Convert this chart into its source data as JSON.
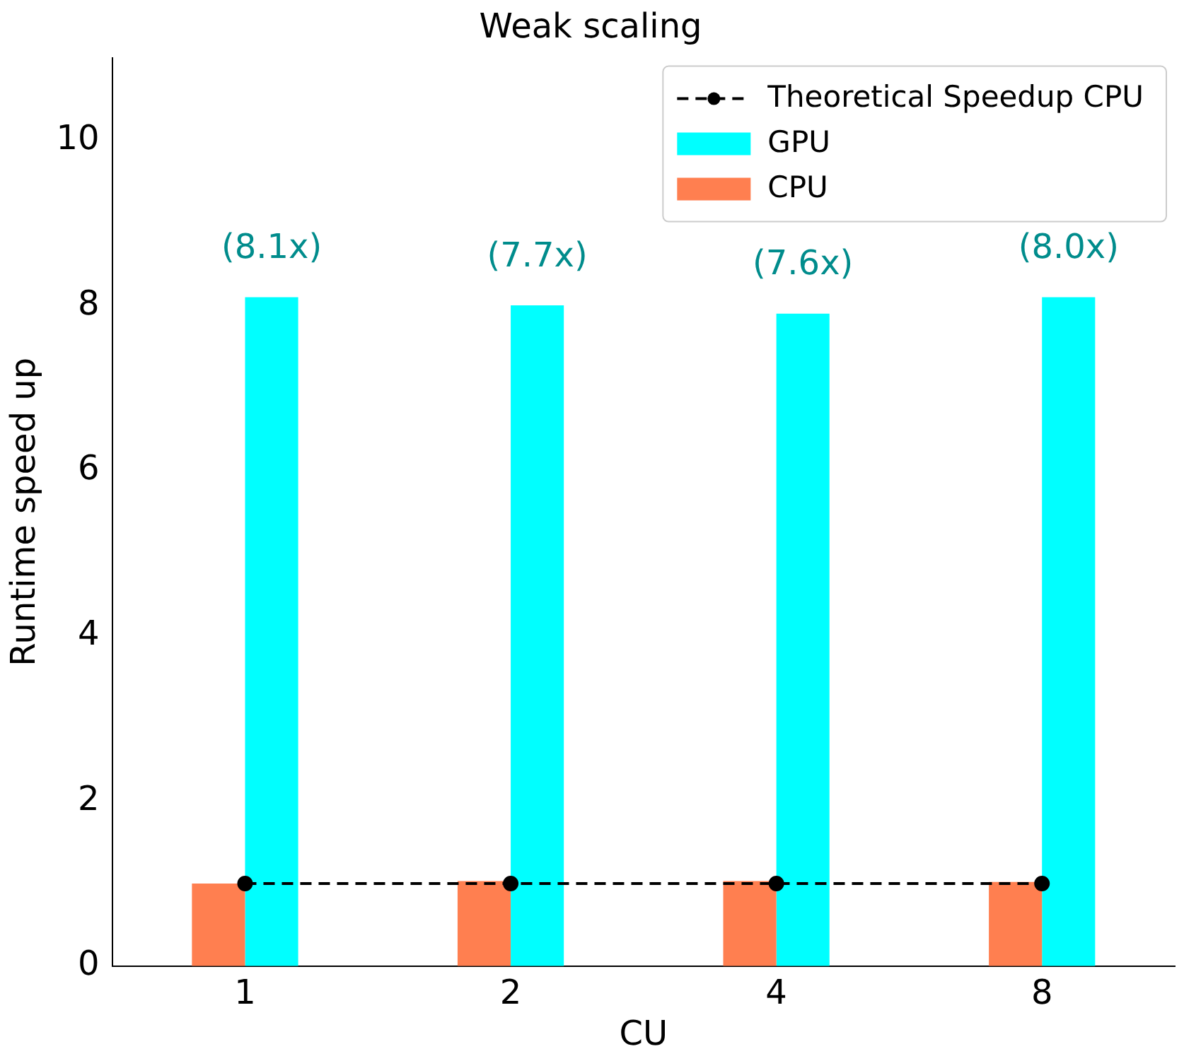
{
  "chart_data": {
    "type": "bar",
    "title": "Weak scaling",
    "xlabel": "CU",
    "ylabel": "Runtime speed up",
    "categories": [
      "1",
      "2",
      "4",
      "8"
    ],
    "series": [
      {
        "name": "CPU",
        "color": "#ff7f50",
        "values": [
          1.0,
          1.03,
          1.03,
          1.02
        ]
      },
      {
        "name": "GPU",
        "color": "#00ffff",
        "values": [
          8.1,
          8.0,
          7.9,
          8.1
        ]
      },
      {
        "name": "Theoretical Speedup CPU",
        "type": "line",
        "color": "#000000",
        "marker": "circle",
        "line_style": "dashed",
        "values": [
          1,
          1,
          1,
          1
        ]
      }
    ],
    "annotations": [
      "(8.1x)",
      "(7.7x)",
      "(7.6x)",
      "(8.0x)"
    ],
    "ylim": [
      0,
      11
    ],
    "yticks": [
      0,
      2,
      4,
      6,
      8,
      10
    ],
    "grid": false,
    "legend": "top right"
  }
}
